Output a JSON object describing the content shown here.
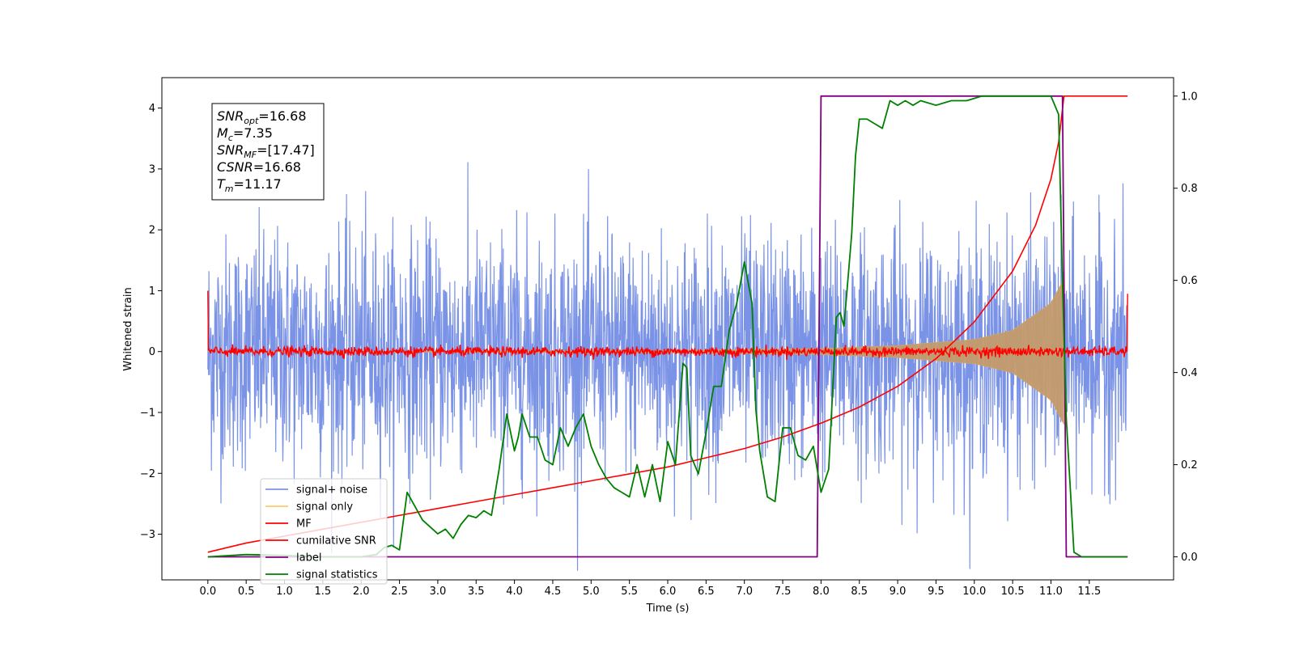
{
  "chart_data": {
    "type": "line",
    "xlabel": "Time (s)",
    "ylabel": "Whitened strain",
    "xlim": [
      -0.6,
      12.6
    ],
    "ylim": [
      -3.75,
      4.5
    ],
    "y2lim": [
      -0.05,
      1.04
    ],
    "x_ticks": [
      "0.0",
      "0.5",
      "1.0",
      "1.5",
      "2.0",
      "2.5",
      "3.0",
      "3.5",
      "4.0",
      "4.5",
      "5.0",
      "5.5",
      "6.0",
      "6.5",
      "7.0",
      "7.5",
      "8.0",
      "8.5",
      "9.0",
      "9.5",
      "10.0",
      "10.5",
      "11.0",
      "11.5"
    ],
    "x_tick_values": [
      0,
      0.5,
      1,
      1.5,
      2,
      2.5,
      3,
      3.5,
      4,
      4.5,
      5,
      5.5,
      6,
      6.5,
      7,
      7.5,
      8,
      8.5,
      9,
      9.5,
      10,
      10.5,
      11,
      11.5
    ],
    "y_ticks": [
      "4",
      "3",
      "2",
      "1",
      "0",
      "−1",
      "−2",
      "−3"
    ],
    "y_tick_values": [
      4,
      3,
      2,
      1,
      0,
      -1,
      -2,
      -3
    ],
    "y2_ticks": [
      "1.0",
      "0.8",
      "0.6",
      "0.4",
      "0.2",
      "0.0"
    ],
    "y2_tick_values": [
      1.0,
      0.8,
      0.6,
      0.4,
      0.2,
      0.0
    ],
    "annotation": {
      "lines": [
        {
          "base": "SNR",
          "sub": "opt",
          "value": "=16.68"
        },
        {
          "base": "M",
          "sub": "c",
          "value": "=7.35"
        },
        {
          "base": "SNR",
          "sub": "MF",
          "value": "=[17.47]"
        },
        {
          "base": "CSNR",
          "sub": "",
          "value": "=16.68"
        },
        {
          "base": "T",
          "sub": "m",
          "value": "=11.17"
        }
      ]
    },
    "legend": {
      "placement": "lower-left",
      "entries": [
        {
          "label": "signal+ noise",
          "color": "#7b93e6"
        },
        {
          "label": "signal only",
          "color": "#ffcc66"
        },
        {
          "label": "MF",
          "color": "#ff0000"
        },
        {
          "label": "cumilative SNR",
          "color": "#ff0000"
        },
        {
          "label": "label",
          "color": "#800080"
        },
        {
          "label": "signal statistics",
          "color": "#008000"
        }
      ]
    },
    "series": [
      {
        "name": "signal+ noise",
        "axis": "left",
        "color": "#7b93e6",
        "x_range": [
          0,
          12
        ],
        "noise_amplitude": 2.8,
        "spike_peak": 3.6
      },
      {
        "name": "signal only",
        "axis": "left",
        "color": "#ffcc66",
        "x_range": [
          0,
          11.17
        ],
        "envelope_x": [
          0,
          6.0,
          8.0,
          9.0,
          10.0,
          10.5,
          11.0,
          11.17
        ],
        "envelope_y": [
          0,
          0.02,
          0.05,
          0.1,
          0.2,
          0.35,
          0.8,
          1.2
        ]
      },
      {
        "name": "MF",
        "axis": "left",
        "color": "#ff0000",
        "x_range": [
          0,
          12
        ],
        "baseline": 0.0,
        "noise_amplitude": 0.1,
        "edge_values": [
          1.0,
          0.95
        ]
      },
      {
        "name": "cumilative SNR",
        "axis": "right",
        "color": "#ff0000",
        "x": [
          0,
          0.5,
          1,
          1.5,
          2,
          2.5,
          3,
          3.5,
          4,
          4.5,
          5,
          5.5,
          6,
          6.5,
          7,
          7.5,
          8,
          8.5,
          9,
          9.5,
          10,
          10.5,
          10.8,
          11,
          11.1,
          11.17,
          11.3,
          12
        ],
        "y": [
          0.01,
          0.03,
          0.045,
          0.06,
          0.075,
          0.09,
          0.105,
          0.12,
          0.135,
          0.15,
          0.165,
          0.18,
          0.195,
          0.215,
          0.235,
          0.26,
          0.29,
          0.325,
          0.37,
          0.43,
          0.51,
          0.62,
          0.72,
          0.82,
          0.9,
          1.0,
          1.0,
          1.0
        ]
      },
      {
        "name": "label",
        "axis": "right",
        "color": "#800080",
        "x": [
          0,
          7.95,
          8.0,
          11.15,
          11.2,
          12
        ],
        "y": [
          0,
          0,
          1,
          1,
          0,
          0
        ]
      },
      {
        "name": "signal statistics",
        "axis": "right",
        "color": "#008000",
        "x": [
          0,
          0.5,
          1,
          1.5,
          2,
          2.2,
          2.3,
          2.4,
          2.5,
          2.6,
          2.7,
          2.8,
          3.0,
          3.1,
          3.2,
          3.3,
          3.4,
          3.5,
          3.6,
          3.7,
          3.8,
          3.9,
          4.0,
          4.05,
          4.1,
          4.2,
          4.3,
          4.4,
          4.5,
          4.6,
          4.7,
          4.8,
          4.9,
          5.0,
          5.1,
          5.2,
          5.3,
          5.4,
          5.5,
          5.6,
          5.7,
          5.8,
          5.9,
          6.0,
          6.1,
          6.2,
          6.25,
          6.3,
          6.4,
          6.5,
          6.6,
          6.7,
          6.8,
          6.9,
          7.0,
          7.1,
          7.15,
          7.2,
          7.3,
          7.4,
          7.5,
          7.6,
          7.7,
          7.8,
          7.9,
          8.0,
          8.1,
          8.2,
          8.25,
          8.3,
          8.4,
          8.45,
          8.5,
          8.6,
          8.7,
          8.8,
          8.9,
          9.0,
          9.1,
          9.2,
          9.3,
          9.5,
          9.7,
          9.9,
          10.1,
          10.5,
          11.0,
          11.1,
          11.15,
          11.2,
          11.3,
          11.4,
          12
        ],
        "y": [
          0.0,
          0.005,
          0.003,
          0.0,
          0.0,
          0.005,
          0.02,
          0.025,
          0.015,
          0.14,
          0.11,
          0.08,
          0.05,
          0.06,
          0.04,
          0.07,
          0.09,
          0.085,
          0.1,
          0.09,
          0.19,
          0.31,
          0.23,
          0.26,
          0.31,
          0.26,
          0.26,
          0.21,
          0.2,
          0.28,
          0.24,
          0.28,
          0.31,
          0.24,
          0.2,
          0.17,
          0.15,
          0.14,
          0.13,
          0.2,
          0.13,
          0.2,
          0.12,
          0.25,
          0.2,
          0.42,
          0.41,
          0.22,
          0.18,
          0.27,
          0.37,
          0.37,
          0.49,
          0.55,
          0.64,
          0.55,
          0.32,
          0.23,
          0.13,
          0.12,
          0.28,
          0.28,
          0.22,
          0.21,
          0.24,
          0.14,
          0.19,
          0.52,
          0.53,
          0.5,
          0.7,
          0.87,
          0.95,
          0.95,
          0.94,
          0.93,
          0.99,
          0.98,
          0.99,
          0.98,
          0.99,
          0.98,
          0.99,
          0.99,
          1.0,
          1.0,
          1.0,
          0.96,
          0.6,
          0.3,
          0.01,
          0.0,
          0.0
        ]
      }
    ]
  }
}
